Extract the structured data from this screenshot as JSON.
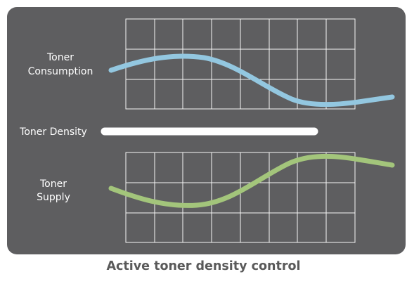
{
  "diagram": {
    "caption": "Active toner density control",
    "consumption_label_line1": "Toner",
    "consumption_label_line2": "Consumption",
    "density_label": "Toner Density",
    "supply_label_line1": "Toner",
    "supply_label_line2": "Supply"
  },
  "colors": {
    "panel_background": "#5e5e60",
    "grid_lines": "#ffffff",
    "consumption_curve": "#93c7e0",
    "supply_curve": "#a3c57b",
    "density_bar": "#ffffff",
    "caption_text": "#5a5a5a"
  }
}
